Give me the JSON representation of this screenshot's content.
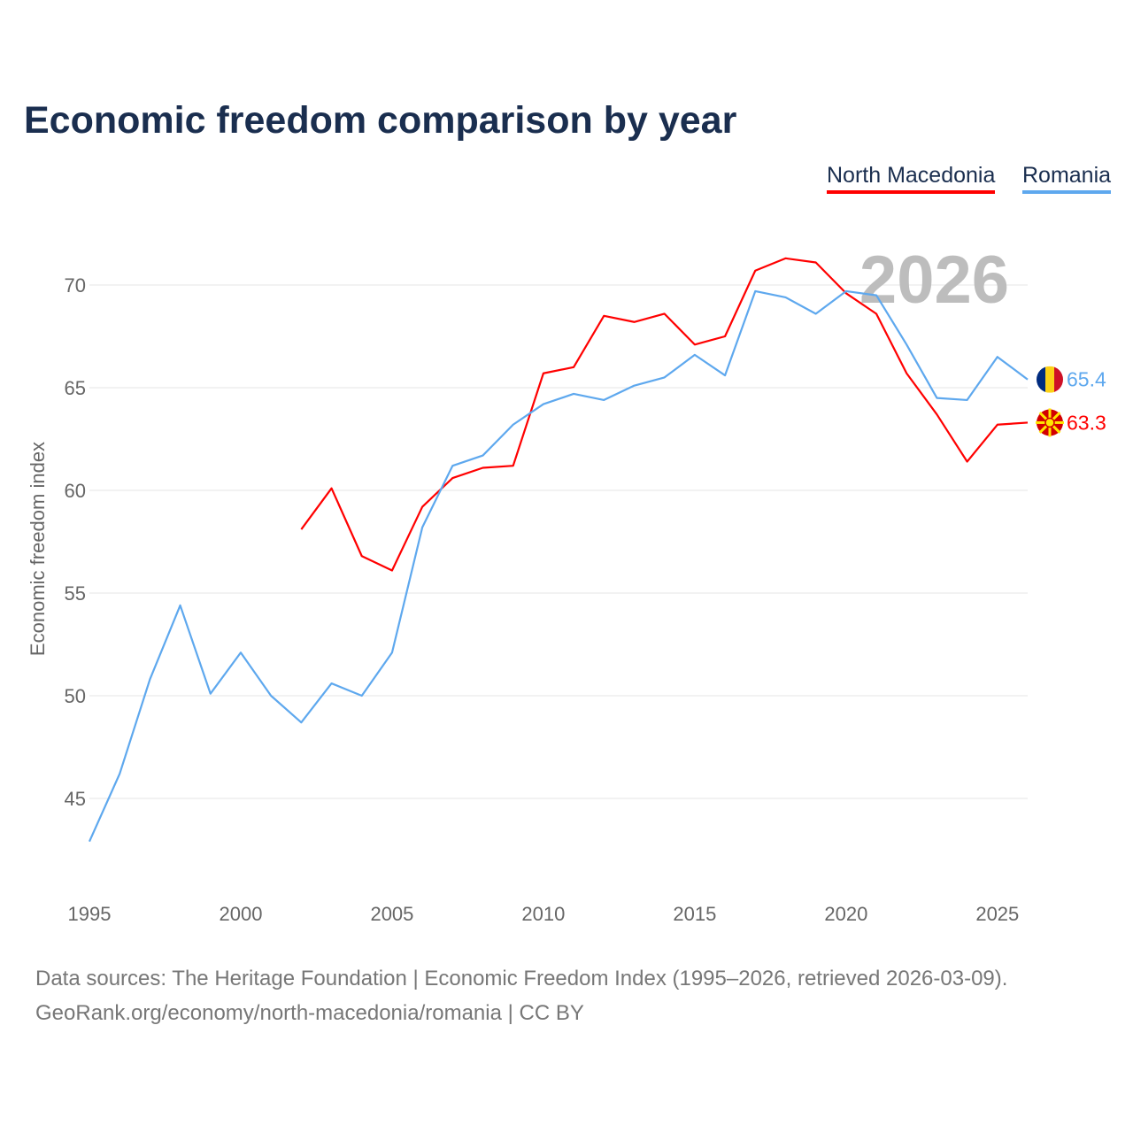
{
  "chart_data": {
    "type": "line",
    "title": "Economic freedom comparison by year",
    "xlabel": "",
    "ylabel": "Economic freedom index",
    "xlim": [
      1995,
      2026
    ],
    "ylim": [
      41,
      73
    ],
    "yticks": [
      45,
      50,
      55,
      60,
      65,
      70
    ],
    "xticks": [
      1995,
      2000,
      2005,
      2010,
      2015,
      2020,
      2025
    ],
    "grid": true,
    "legend_position": "top-right",
    "year_watermark": "2026",
    "series": [
      {
        "name": "North Macedonia",
        "color": "#ff0000",
        "end_label": "63.3",
        "flag": "north-macedonia-flag",
        "x": [
          2002,
          2003,
          2004,
          2005,
          2006,
          2007,
          2008,
          2009,
          2010,
          2011,
          2012,
          2013,
          2014,
          2015,
          2016,
          2017,
          2018,
          2019,
          2020,
          2021,
          2022,
          2023,
          2024,
          2025,
          2026
        ],
        "values": [
          58.1,
          60.1,
          56.8,
          56.1,
          59.2,
          60.6,
          61.1,
          61.2,
          65.7,
          66.0,
          68.5,
          68.2,
          68.6,
          67.1,
          67.5,
          70.7,
          71.3,
          71.1,
          69.6,
          68.6,
          65.7,
          63.7,
          61.4,
          63.2,
          63.3
        ]
      },
      {
        "name": "Romania",
        "color": "#5ea8ee",
        "end_label": "65.4",
        "flag": "romania-flag",
        "x": [
          1995,
          1996,
          1997,
          1998,
          1999,
          2000,
          2001,
          2002,
          2003,
          2004,
          2005,
          2006,
          2007,
          2008,
          2009,
          2010,
          2011,
          2012,
          2013,
          2014,
          2015,
          2016,
          2017,
          2018,
          2019,
          2020,
          2021,
          2022,
          2023,
          2024,
          2025,
          2026
        ],
        "values": [
          42.9,
          46.2,
          50.8,
          54.4,
          50.1,
          52.1,
          50.0,
          48.7,
          50.6,
          50.0,
          52.1,
          58.2,
          61.2,
          61.7,
          63.2,
          64.2,
          64.7,
          64.4,
          65.1,
          65.5,
          66.6,
          65.6,
          69.7,
          69.4,
          68.6,
          69.7,
          69.5,
          67.1,
          64.5,
          64.4,
          66.5,
          65.4
        ]
      }
    ]
  },
  "source": {
    "line1": "Data sources: The Heritage Foundation | Economic Freedom Index (1995–2026, retrieved 2026-03-09).",
    "line2": "GeoRank.org/economy/north-macedonia/romania | CC BY"
  }
}
